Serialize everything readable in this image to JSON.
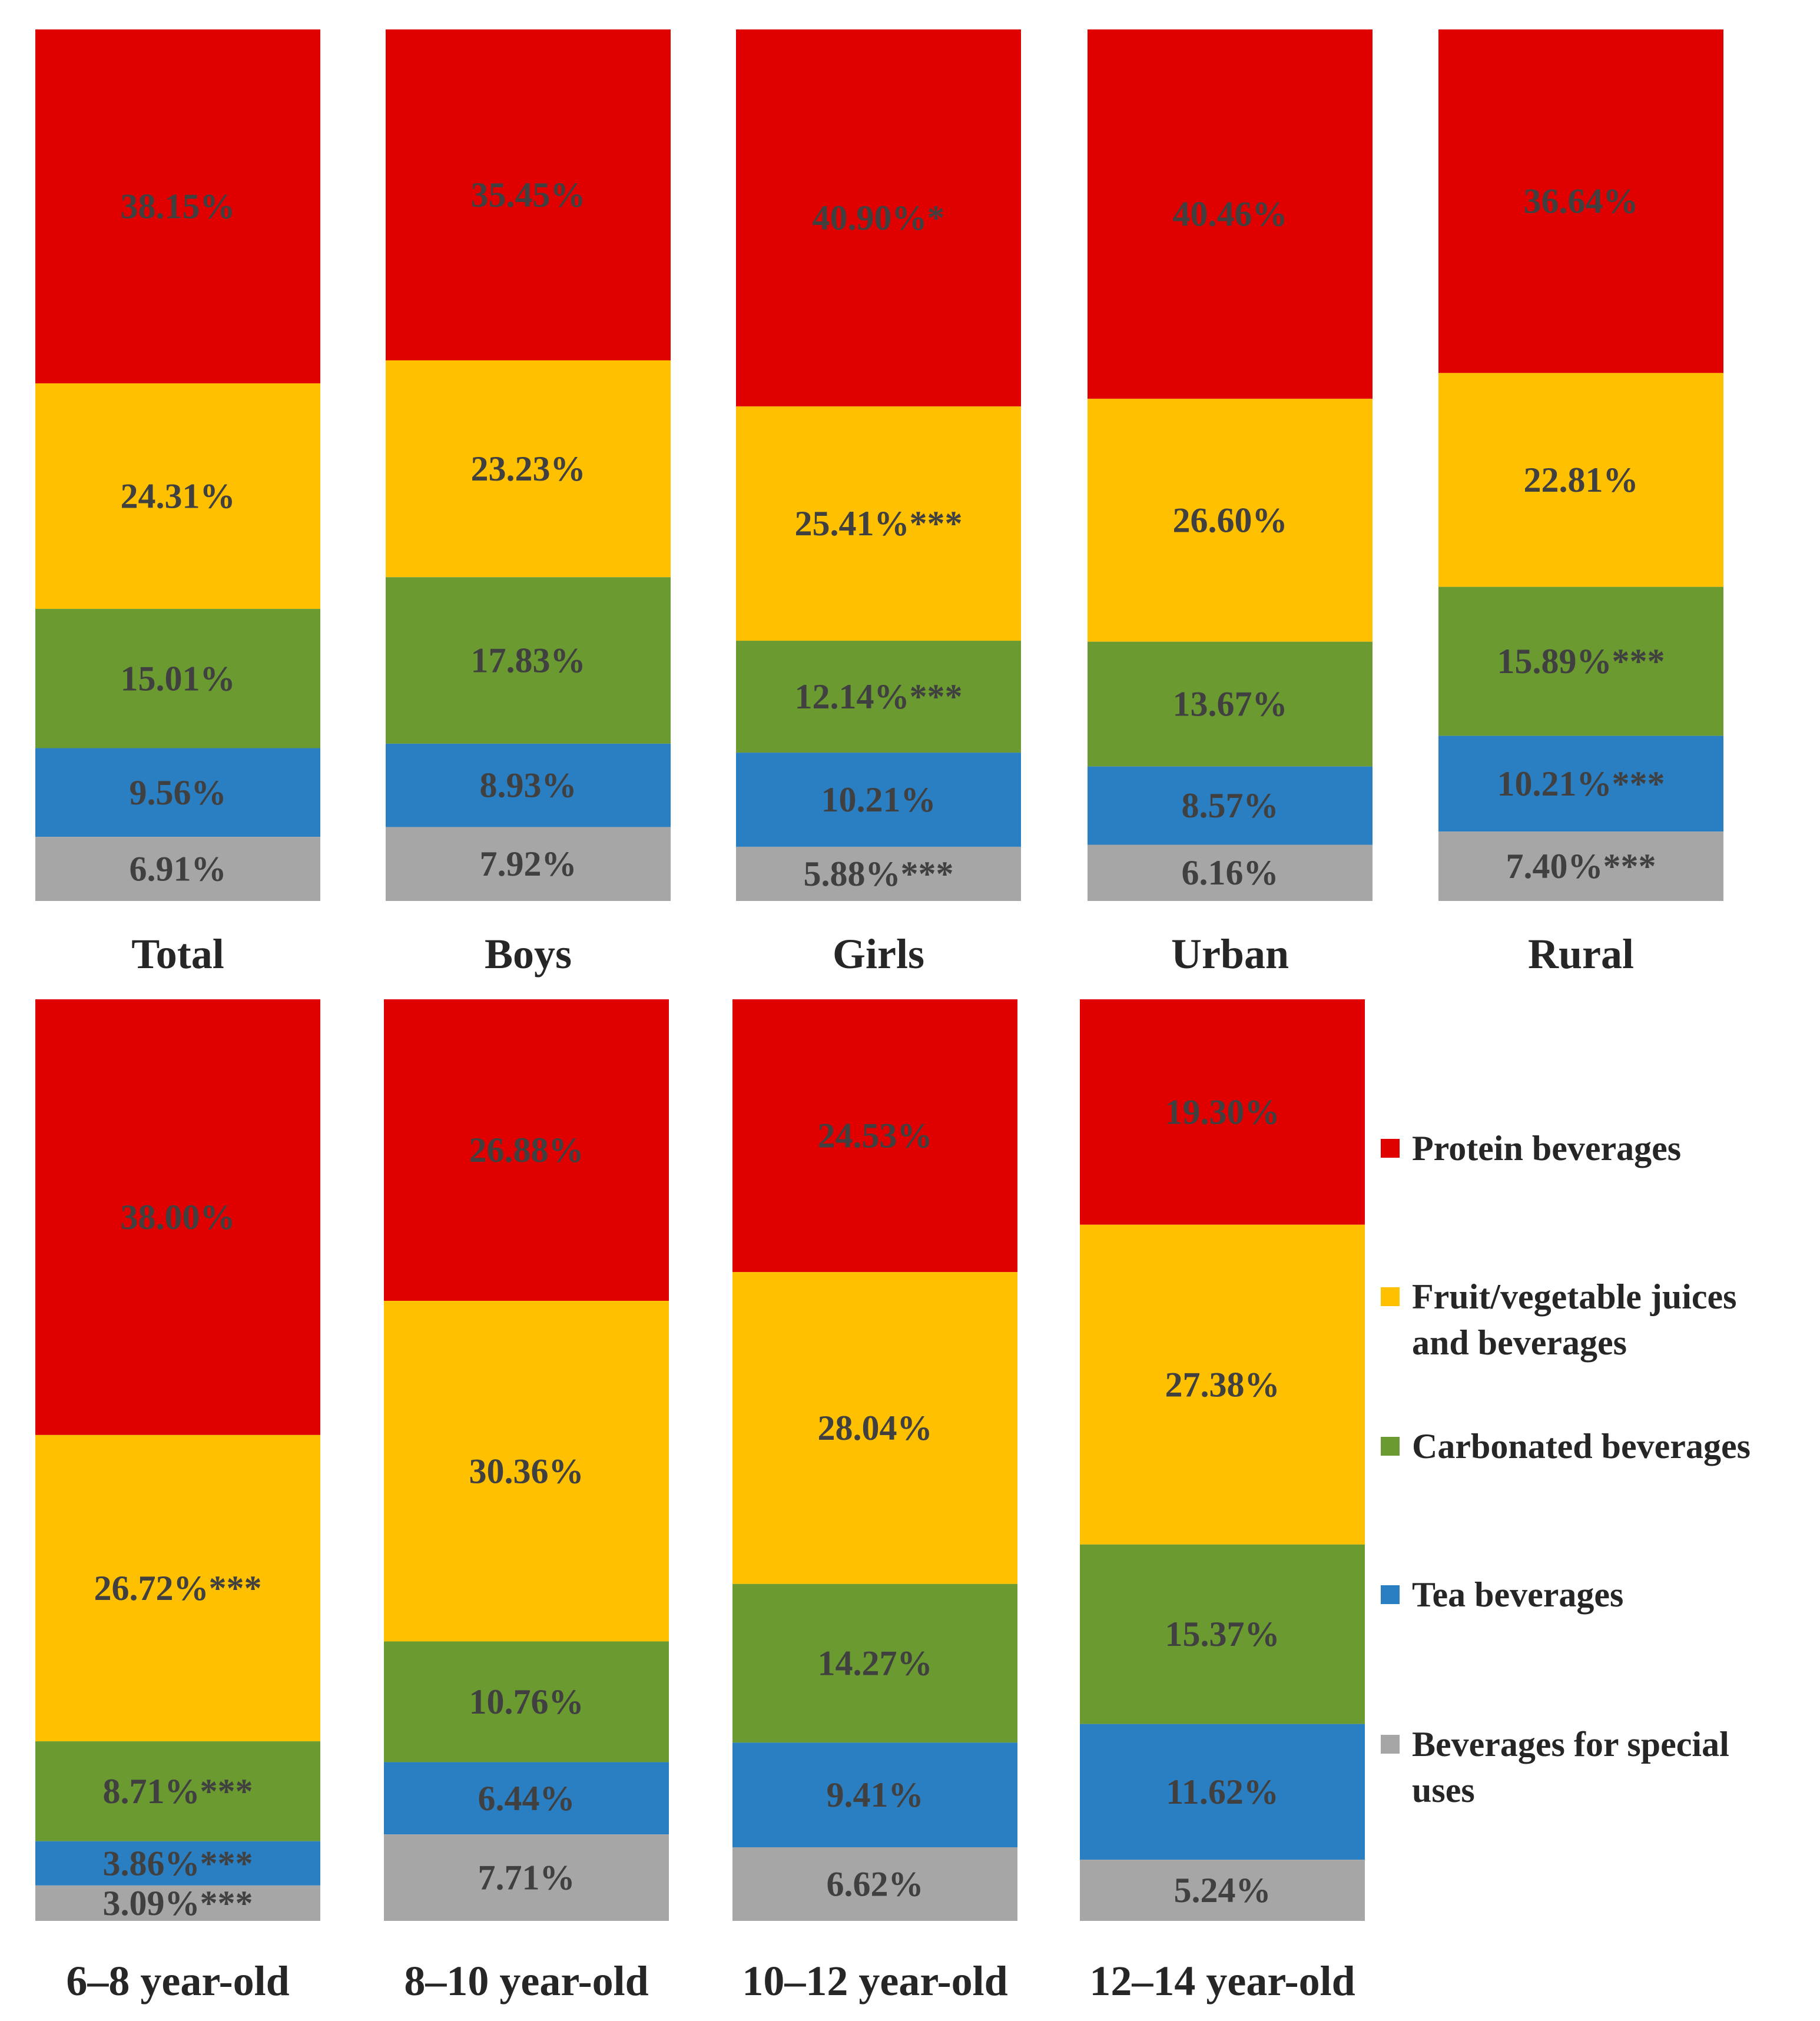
{
  "chart_data": {
    "type": "stacked_bar_100",
    "title": "",
    "legend": {
      "position": "right",
      "entries": [
        {
          "series_index": 0,
          "lines": [
            "Protein beverages"
          ]
        },
        {
          "series_index": 1,
          "lines": [
            "Fruit/vegetable juices",
            "and beverages"
          ]
        },
        {
          "series_index": 2,
          "lines": [
            "Carbonated beverages"
          ]
        },
        {
          "series_index": 3,
          "lines": [
            "Tea beverages"
          ]
        },
        {
          "series_index": 4,
          "lines": [
            "Beverages for special",
            "uses"
          ]
        }
      ]
    },
    "series": [
      {
        "name": "Protein beverages",
        "color": "#E00000"
      },
      {
        "name": "Fruit/vegetable juices and beverages",
        "color": "#FFC000"
      },
      {
        "name": "Carbonated beverages",
        "color": "#6A9A30"
      },
      {
        "name": "Tea beverages",
        "color": "#2A7FC3"
      },
      {
        "name": "Beverages for special uses",
        "color": "#A6A6A6"
      }
    ],
    "panels": [
      {
        "row": "top",
        "categories": [
          {
            "name": "Total",
            "values": [
              38.15,
              24.31,
              15.01,
              9.56,
              6.91
            ],
            "labels": [
              "38.15%",
              "24.31%",
              "15.01%",
              "9.56%",
              "6.91%"
            ]
          },
          {
            "name": "Boys",
            "values": [
              35.45,
              23.23,
              17.83,
              8.93,
              7.92
            ],
            "labels": [
              "35.45%",
              "23.23%",
              "17.83%",
              "8.93%",
              "7.92%"
            ]
          },
          {
            "name": "Girls",
            "values": [
              40.9,
              25.41,
              12.14,
              10.21,
              5.88
            ],
            "labels": [
              "40.90%*",
              "25.41%***",
              "12.14%***",
              "10.21%",
              "5.88%***"
            ]
          },
          {
            "name": "Urban",
            "values": [
              40.46,
              26.6,
              13.67,
              8.57,
              6.16
            ],
            "labels": [
              "40.46%",
              "26.60%",
              "13.67%",
              "8.57%",
              "6.16%"
            ]
          },
          {
            "name": "Rural",
            "values": [
              36.64,
              22.81,
              15.89,
              10.21,
              7.4
            ],
            "labels": [
              "36.64%",
              "22.81%",
              "15.89%***",
              "10.21%***",
              "7.40%***"
            ]
          }
        ]
      },
      {
        "row": "bottom",
        "categories": [
          {
            "name": "6–8 year-old",
            "values": [
              38.0,
              26.72,
              8.71,
              3.86,
              3.09
            ],
            "labels": [
              "38.00%",
              "26.72%***",
              "8.71%***",
              "3.86%***",
              "3.09%***"
            ]
          },
          {
            "name": "8–10 year-old",
            "values": [
              26.88,
              30.36,
              10.76,
              6.44,
              7.71
            ],
            "labels": [
              "26.88%",
              "30.36%",
              "10.76%",
              "6.44%",
              "7.71%"
            ]
          },
          {
            "name": "10–12 year-old",
            "values": [
              24.53,
              28.04,
              14.27,
              9.41,
              6.62
            ],
            "labels": [
              "24.53%",
              "28.04%",
              "14.27%",
              "9.41%",
              "6.62%"
            ]
          },
          {
            "name": "12–14 year-old",
            "values": [
              19.3,
              27.38,
              15.37,
              11.62,
              5.24
            ],
            "labels": [
              "19.30%",
              "27.38%",
              "15.37%",
              "11.62%",
              "5.24%"
            ]
          }
        ]
      }
    ]
  }
}
